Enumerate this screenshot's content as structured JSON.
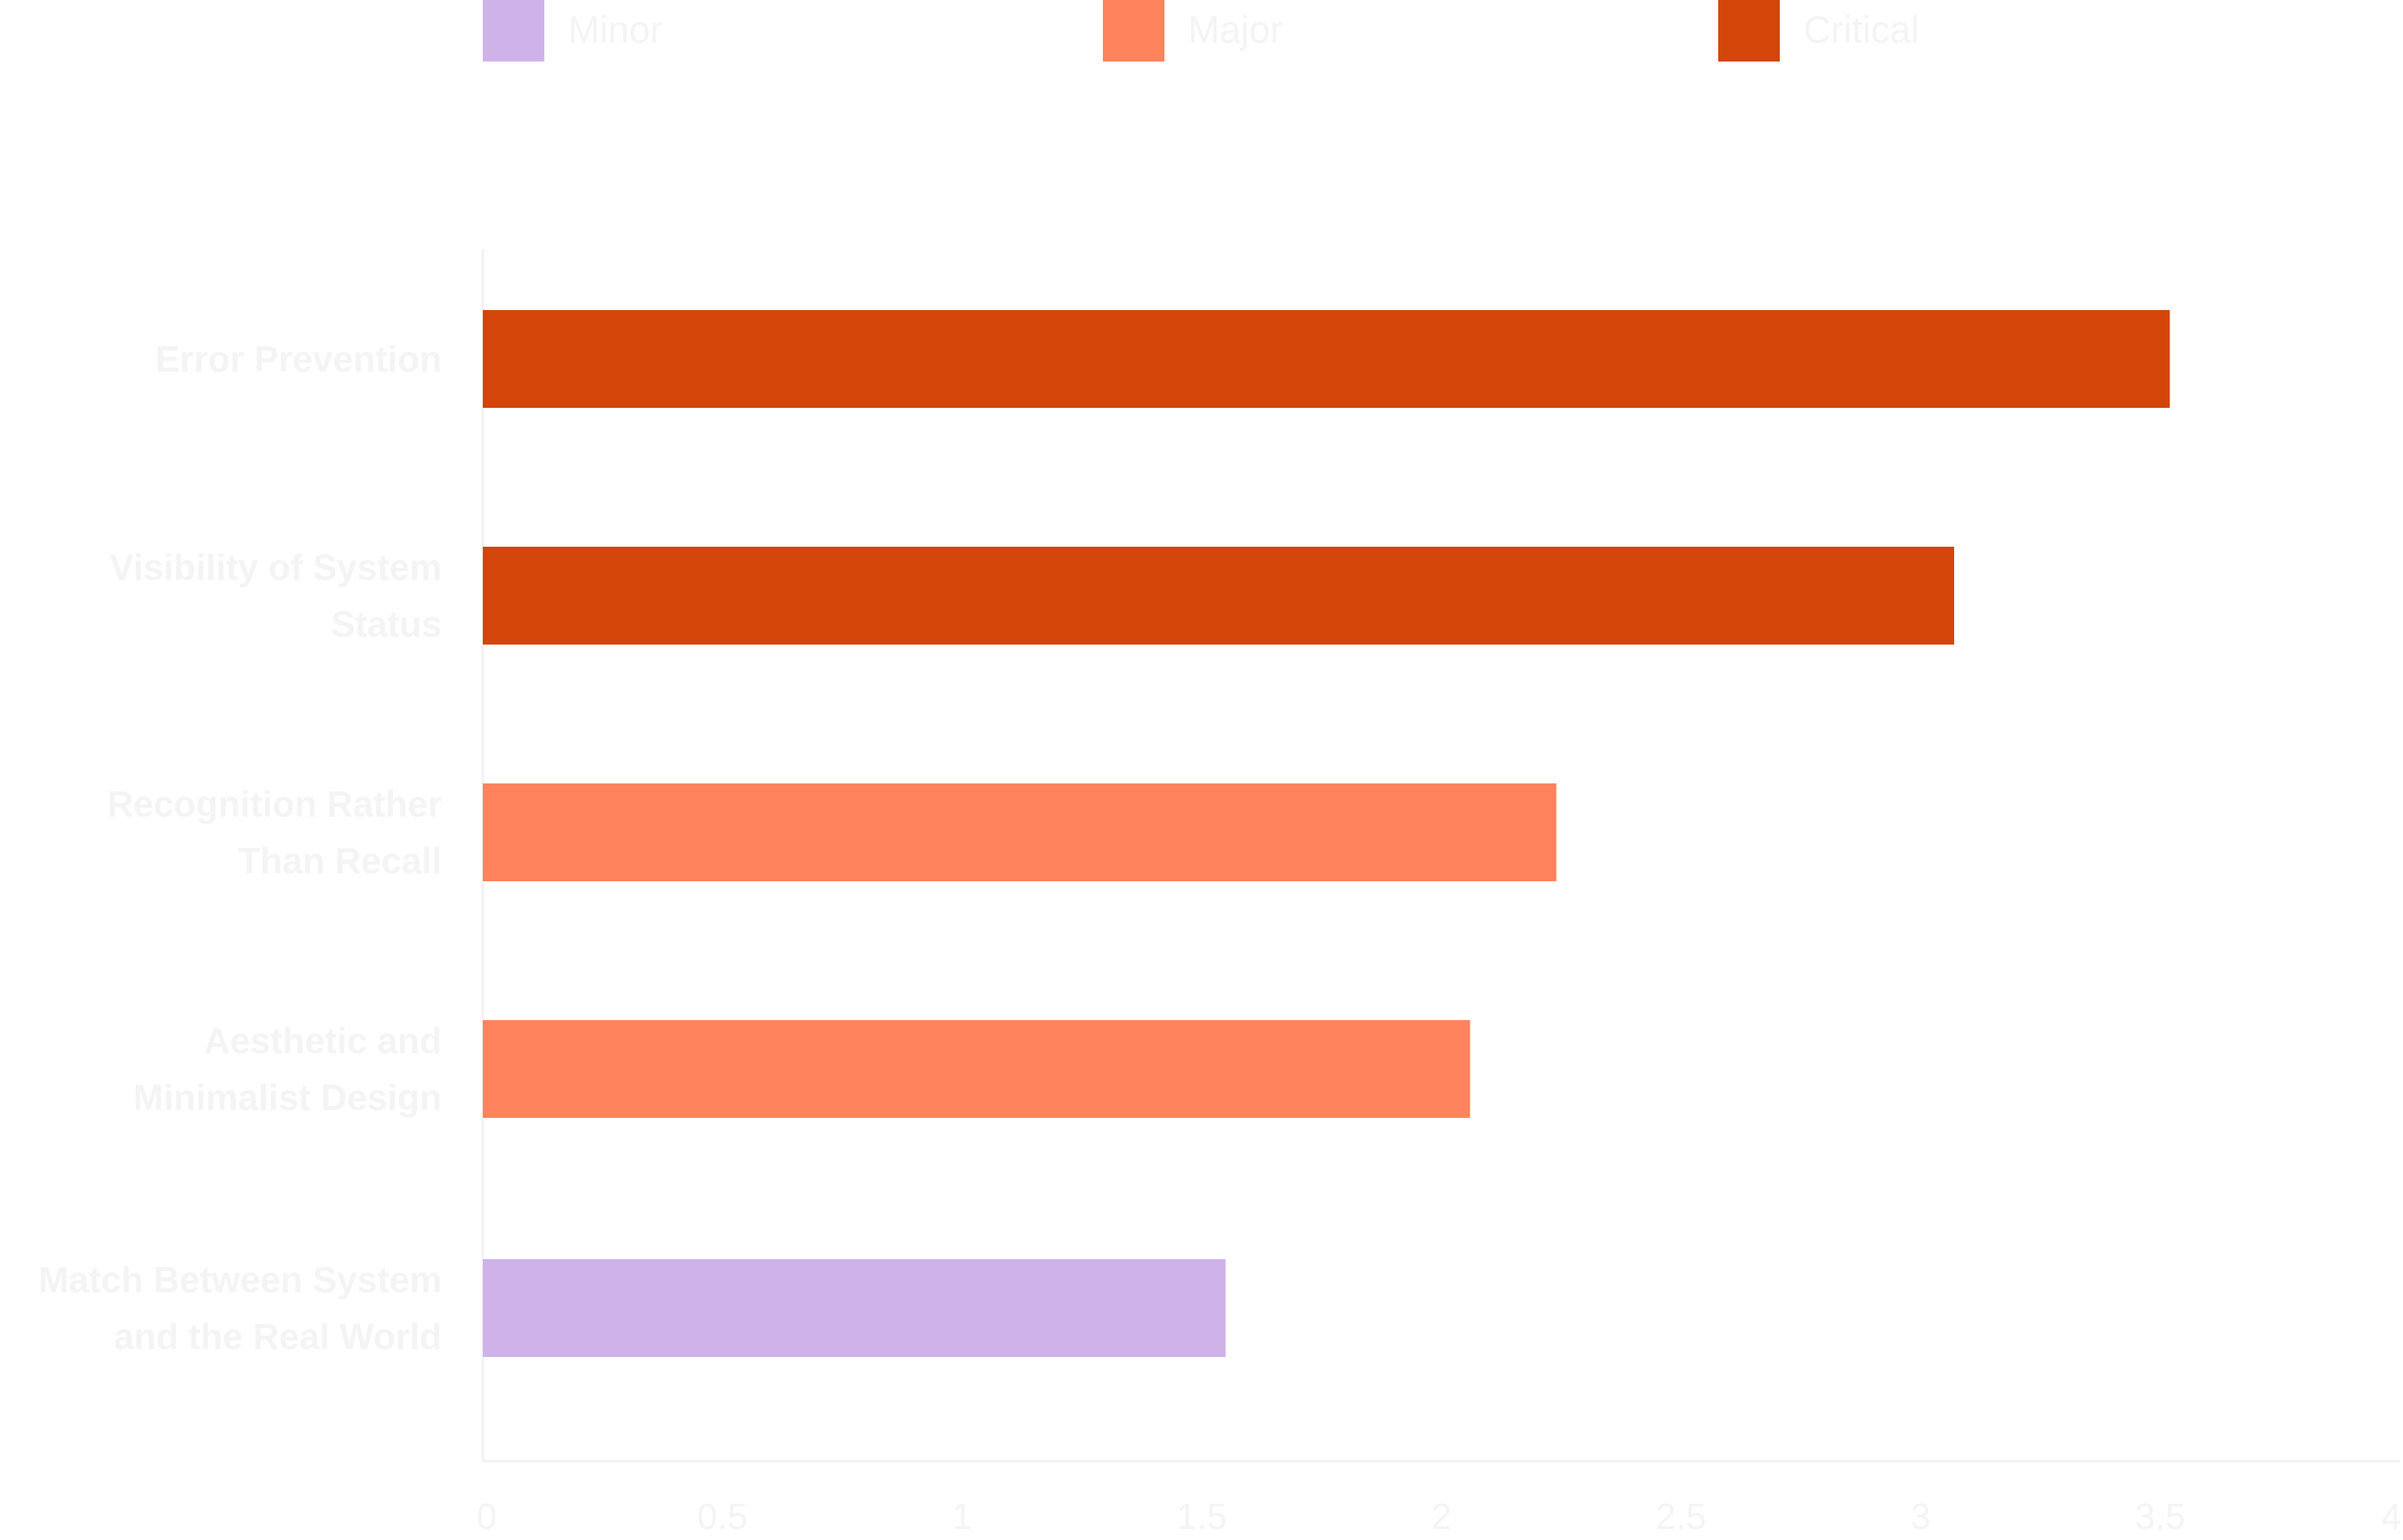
{
  "chart_data": {
    "type": "bar",
    "orientation": "horizontal",
    "title": "",
    "xlabel": "",
    "ylabel": "",
    "xlim": [
      0,
      4
    ],
    "x_ticks": [
      "0",
      "0.5",
      "1",
      "1.5",
      "2",
      "2.5",
      "3",
      "3.5",
      "4"
    ],
    "legend": {
      "placement": "top",
      "entries": [
        {
          "name": "Minor",
          "color": "#cfb3e8"
        },
        {
          "name": "Major",
          "color": "#ff835d"
        },
        {
          "name": "Critical",
          "color": "#d4450a"
        }
      ]
    },
    "categories": [
      [
        "Error Prevention"
      ],
      [
        "Visibility of System",
        "Status"
      ],
      [
        "Recognition Rather",
        "Than Recall"
      ],
      [
        "Aesthetic and",
        "Minimalist Design"
      ],
      [
        "Match Between System",
        "and the Real World"
      ]
    ],
    "values": [
      3.52,
      3.07,
      2.24,
      2.06,
      1.55
    ],
    "severity": [
      "Critical",
      "Critical",
      "Major",
      "Major",
      "Minor"
    ],
    "grid": false,
    "text_color": "#f4f4f4",
    "axis_color": "#f1f1f1"
  }
}
